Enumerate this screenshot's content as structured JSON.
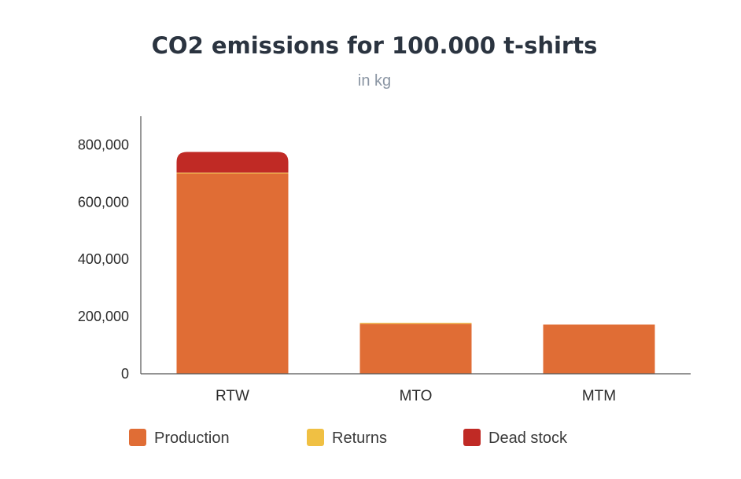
{
  "chart_data": {
    "type": "bar",
    "stacked": true,
    "title": "CO2 emissions for 100.000 t-shirts",
    "subtitle": "in kg",
    "xlabel": "",
    "ylabel": "",
    "categories": [
      "RTW",
      "MTO",
      "MTM"
    ],
    "series": [
      {
        "name": "Production",
        "color": "#e06d35",
        "values": [
          700000,
          175000,
          172000
        ]
      },
      {
        "name": "Returns",
        "color": "#f0c043",
        "values": [
          3000,
          3000,
          0
        ]
      },
      {
        "name": "Dead stock",
        "color": "#c02a25",
        "values": [
          72000,
          0,
          0
        ]
      }
    ],
    "ylim": [
      0,
      900000
    ],
    "yticks": [
      0,
      200000,
      400000,
      600000,
      800000
    ],
    "ytick_labels": [
      "0",
      "200,000",
      "400,000",
      "600,000",
      "800,000"
    ],
    "grid": false,
    "legend_position": "bottom"
  }
}
